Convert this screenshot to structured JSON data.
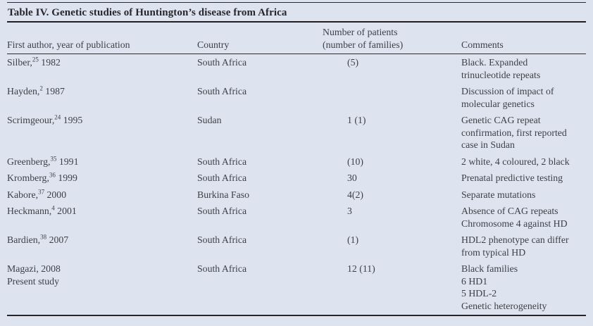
{
  "table": {
    "title": "Table IV. Genetic studies of Huntington’s disease from Africa",
    "headers": {
      "author": "First author, year of publication",
      "country": "Country",
      "patients": "Number of patients\n(number of families)",
      "comments": "Comments"
    },
    "rows": [
      {
        "author_pre": "Silber,",
        "author_sup": "25",
        "author_post": " 1982",
        "author_line2": "",
        "country": "South Africa",
        "patients": "(5)",
        "comments": "Black. Expanded\ntrinucleotide repeats"
      },
      {
        "author_pre": "Hayden,",
        "author_sup": "2",
        "author_post": " 1987",
        "author_line2": "",
        "country": "South Africa",
        "patients": "",
        "comments": "Discussion of impact of\nmolecular genetics"
      },
      {
        "author_pre": "Scrimgeour,",
        "author_sup": "24",
        "author_post": " 1995",
        "author_line2": "",
        "country": "Sudan",
        "patients": "1 (1)",
        "comments": "Genetic CAG repeat\nconfirmation, first reported\ncase in Sudan"
      },
      {
        "author_pre": "Greenberg,",
        "author_sup": "35",
        "author_post": " 1991",
        "author_line2": "",
        "country": "South Africa",
        "patients": "(10)",
        "comments": "2 white, 4 coloured, 2 black"
      },
      {
        "author_pre": "Kromberg,",
        "author_sup": "36",
        "author_post": " 1999",
        "author_line2": "",
        "country": "South Africa",
        "patients": "30",
        "comments": "Prenatal predictive testing"
      },
      {
        "author_pre": "Kabore,",
        "author_sup": "37",
        "author_post": " 2000",
        "author_line2": "",
        "country": "Burkina Faso",
        "patients": "4(2)",
        "comments": "Separate mutations"
      },
      {
        "author_pre": "Heckmann,",
        "author_sup": "4",
        "author_post": " 2001",
        "author_line2": "",
        "country": "South Africa",
        "patients": "3",
        "comments": "Absence of CAG repeats\nChromosome 4 against HD"
      },
      {
        "author_pre": "Bardien,",
        "author_sup": "38",
        "author_post": " 2007",
        "author_line2": "",
        "country": "South Africa",
        "patients": "(1)",
        "comments": "HDL2 phenotype can differ\nfrom typical HD"
      },
      {
        "author_pre": "Magazi, 2008",
        "author_sup": "",
        "author_post": "",
        "author_line2": "Present study",
        "country": "South Africa",
        "patients": "12 (11)",
        "comments": "Black families\n6 HD1\n5 HDL-2\nGenetic heterogeneity"
      }
    ],
    "colors": {
      "background": "#dee4ef",
      "text": "#3d3f46",
      "rule": "#26262b"
    }
  }
}
